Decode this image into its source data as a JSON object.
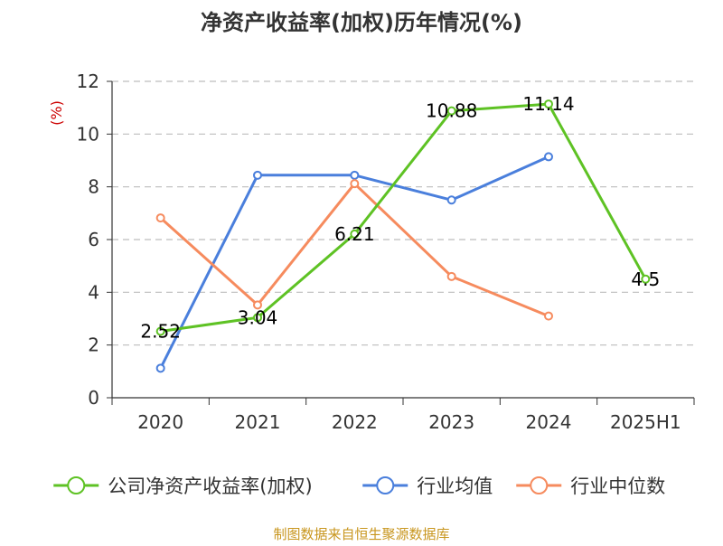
{
  "chart_data": {
    "type": "line",
    "title": "净资产收益率(加权)历年情况(%)",
    "ylabel": "(%)",
    "xlabel": "",
    "categories": [
      "2020",
      "2021",
      "2022",
      "2023",
      "2024",
      "2025H1"
    ],
    "ylim": [
      0,
      12
    ],
    "yticks": [
      0,
      2,
      4,
      6,
      8,
      10,
      12
    ],
    "grid": true,
    "legend_position": "bottom",
    "series": [
      {
        "name": "公司净资产收益率(加权)",
        "color": "#5ec224",
        "values": [
          2.52,
          3.04,
          6.21,
          10.88,
          11.14,
          4.5
        ],
        "labels": [
          "2.52",
          "3.04",
          "6.21",
          "10.88",
          "11.14",
          "4.5"
        ]
      },
      {
        "name": "行业均值",
        "color": "#4a7fdc",
        "values": [
          1.12,
          8.44,
          8.44,
          7.5,
          9.14,
          null
        ]
      },
      {
        "name": "行业中位数",
        "color": "#f68b5e",
        "values": [
          6.82,
          3.52,
          8.12,
          4.6,
          3.1,
          null
        ]
      }
    ],
    "source": "制图数据来自恒生聚源数据库"
  }
}
